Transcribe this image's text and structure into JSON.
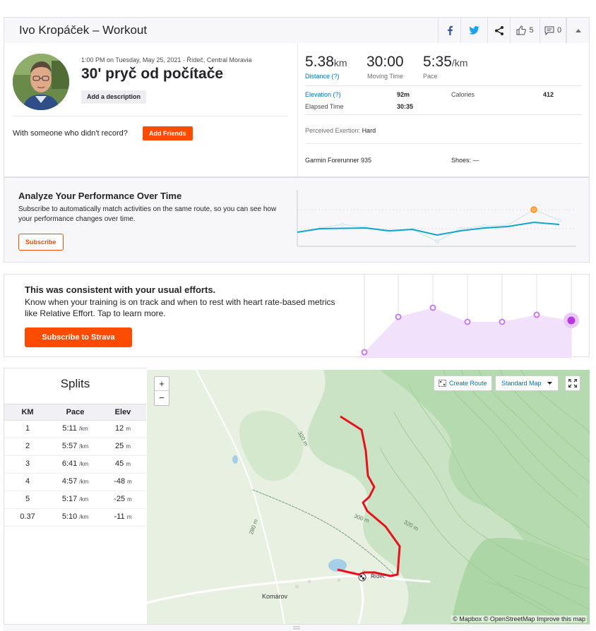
{
  "header": {
    "title": "Ivo Kropáček – Workout",
    "kudos_count": "5",
    "comments_count": "0"
  },
  "activity": {
    "meta": "1:00 PM on Tuesday, May 25, 2021 · Řídeč, Central Moravia",
    "title": "30' pryč od počítače",
    "description_button": "Add a description",
    "with_prompt": "With someone who didn't record?",
    "add_friends": "Add Friends"
  },
  "stats": {
    "distance": {
      "value": "5.38",
      "unit": "km",
      "label": "Distance (?)"
    },
    "moving_time": {
      "value": "30:00",
      "label": "Moving Time"
    },
    "pace": {
      "value": "5:35",
      "unit": "/km",
      "label": "Pace"
    },
    "elevation_label": "Elevation (?)",
    "elevation_value": "92m",
    "calories_label": "Calories",
    "calories_value": "412",
    "elapsed_label": "Elapsed Time",
    "elapsed_value": "30:35",
    "perceived_label": "Perceived Exertion:",
    "perceived_value": "Hard",
    "device": "Garmin Forerunner 935",
    "shoes": "Shoes: —"
  },
  "analyze": {
    "heading": "Analyze Your Performance Over Time",
    "text": "Subscribe to automatically match activities on the same route, so you can see how your performance changes over time.",
    "button": "Subscribe"
  },
  "consistent": {
    "heading": "This was consistent with your usual efforts.",
    "text": "Know when your training is on track and when to rest with heart rate-based metrics like Relative Effort. Tap to learn more.",
    "button": "Subscribe to Strava"
  },
  "splits": {
    "title": "Splits",
    "columns": [
      "KM",
      "Pace",
      "Elev"
    ],
    "rows": [
      {
        "km": "1",
        "pace": "5:11",
        "pace_unit": "/km",
        "elev": "12",
        "elev_unit": "m"
      },
      {
        "km": "2",
        "pace": "5:57",
        "pace_unit": "/km",
        "elev": "25",
        "elev_unit": "m"
      },
      {
        "km": "3",
        "pace": "6:41",
        "pace_unit": "/km",
        "elev": "45",
        "elev_unit": "m"
      },
      {
        "km": "4",
        "pace": "4:57",
        "pace_unit": "/km",
        "elev": "-48",
        "elev_unit": "m"
      },
      {
        "km": "5",
        "pace": "5:17",
        "pace_unit": "/km",
        "elev": "-25",
        "elev_unit": "m"
      },
      {
        "km": "0.37",
        "pace": "5:10",
        "pace_unit": "/km",
        "elev": "-11",
        "elev_unit": "m"
      }
    ]
  },
  "map": {
    "create_route": "Create Route",
    "map_style": "Standard Map",
    "zoom_in": "+",
    "zoom_out": "−",
    "attribution": "© Mapbox © OpenStreetMap Improve this map",
    "labels": {
      "contour_320a": "320 m",
      "contour_300": "300 m",
      "contour_320b": "320 m",
      "contour_280": "280 m",
      "town_ridec": "Řídeč",
      "town_komarov": "Komárov"
    }
  },
  "colors": {
    "brand": "#fc4c02",
    "link": "#0073b0",
    "route": "#e8101d",
    "trend": "#12a5c7",
    "effort": "#c679e8"
  }
}
